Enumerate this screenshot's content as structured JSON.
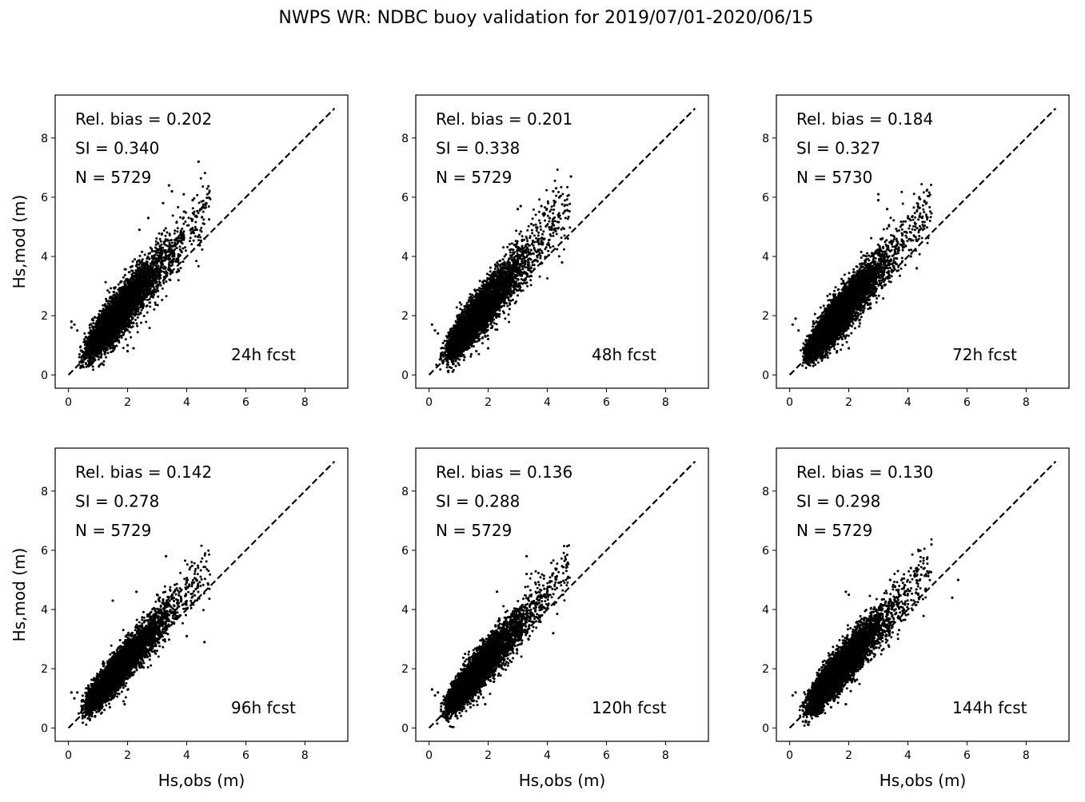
{
  "figure": {
    "title": "NWPS WR: NDBC buoy validation for 2019/07/01-2020/06/15"
  },
  "chart_data": [
    {
      "type": "scatter",
      "forecast": "24h fcst",
      "stats": [
        "Rel. bias =  0.202",
        "SI =  0.340",
        "N = 5729"
      ],
      "xlabel": "",
      "ylabel": "Hs,mod (m)",
      "xlim": [
        -0.45,
        9.45
      ],
      "ylim": [
        -0.45,
        9.45
      ],
      "xticks": [
        0,
        2,
        4,
        6,
        8
      ],
      "yticks": [
        0,
        2,
        4,
        6,
        8
      ],
      "reference_line": {
        "style": "dashed",
        "x": [
          0,
          9
        ],
        "y": [
          0,
          9
        ]
      },
      "marker_color": "#000000",
      "series": [
        {
          "count": 5729,
          "slope": 1.18,
          "intercept": 0.08,
          "spread": 0.34,
          "x": [
            4.4,
            3.4,
            3.5,
            3.2,
            3.9,
            4.7,
            4.2,
            2.7,
            2.4,
            0.1,
            0.1,
            0.2,
            0.3,
            0.9,
            1.1,
            1.5,
            1.5,
            2.0,
            2.0,
            2.2
          ],
          "y": [
            7.2,
            6.4,
            6.2,
            5.8,
            6.1,
            6.1,
            5.9,
            5.3,
            4.9,
            1.6,
            1.8,
            1.7,
            1.5,
            0.5,
            0.6,
            0.9,
            0.8,
            1.0,
            0.8,
            0.9
          ]
        }
      ]
    },
    {
      "type": "scatter",
      "forecast": "48h fcst",
      "stats": [
        "Rel. bias =  0.201",
        "SI =  0.338",
        "N = 5729"
      ],
      "xlabel": "",
      "ylabel": "",
      "xlim": [
        -0.45,
        9.45
      ],
      "ylim": [
        -0.45,
        9.45
      ],
      "xticks": [
        0,
        2,
        4,
        6,
        8
      ],
      "yticks": [
        0,
        2,
        4,
        6,
        8
      ],
      "reference_line": {
        "style": "dashed",
        "x": [
          0,
          9
        ],
        "y": [
          0,
          9
        ]
      },
      "marker_color": "#000000",
      "series": [
        {
          "count": 5729,
          "slope": 1.18,
          "intercept": 0.08,
          "spread": 0.33,
          "x": [
            4.8,
            4.3,
            4.2,
            3.8,
            3.1,
            3.0,
            4.5,
            0.1,
            0.2,
            0.3,
            0.9,
            1.2,
            1.6,
            2.0
          ],
          "y": [
            6.7,
            6.3,
            6.2,
            5.7,
            5.7,
            5.6,
            3.8,
            1.7,
            1.5,
            1.4,
            0.5,
            0.6,
            0.8,
            0.9
          ]
        }
      ]
    },
    {
      "type": "scatter",
      "forecast": "72h fcst",
      "stats": [
        "Rel. bias =  0.184",
        "SI =  0.327",
        "N = 5730"
      ],
      "xlabel": "",
      "ylabel": "",
      "xlim": [
        -0.45,
        9.45
      ],
      "ylim": [
        -0.45,
        9.45
      ],
      "xticks": [
        0,
        2,
        4,
        6,
        8
      ],
      "yticks": [
        0,
        2,
        4,
        6,
        8
      ],
      "reference_line": {
        "style": "dashed",
        "x": [
          0,
          9
        ],
        "y": [
          0,
          9
        ]
      },
      "marker_color": "#000000",
      "series": [
        {
          "count": 5730,
          "slope": 1.16,
          "intercept": 0.08,
          "spread": 0.32,
          "x": [
            3.0,
            3.3,
            3.0,
            4.0,
            4.4,
            4.1,
            4.3,
            0.2,
            0.1,
            0.3,
            0.9,
            1.2,
            1.6,
            2.0
          ],
          "y": [
            6.1,
            5.6,
            5.9,
            5.3,
            4.9,
            4.0,
            3.6,
            1.9,
            1.7,
            1.5,
            0.5,
            0.6,
            0.8,
            0.9
          ]
        }
      ]
    },
    {
      "type": "scatter",
      "forecast": "96h fcst",
      "stats": [
        "Rel. bias =  0.142",
        "SI =  0.278",
        "N = 5729"
      ],
      "xlabel": "Hs,obs (m)",
      "ylabel": "Hs,mod (m)",
      "xlim": [
        -0.45,
        9.45
      ],
      "ylim": [
        -0.45,
        9.45
      ],
      "xticks": [
        0,
        2,
        4,
        6,
        8
      ],
      "yticks": [
        0,
        2,
        4,
        6,
        8
      ],
      "reference_line": {
        "style": "dashed",
        "x": [
          0,
          9
        ],
        "y": [
          0,
          9
        ]
      },
      "marker_color": "#000000",
      "series": [
        {
          "count": 5729,
          "slope": 1.12,
          "intercept": 0.08,
          "spread": 0.26,
          "x": [
            3.3,
            2.3,
            1.5,
            3.0,
            4.6,
            4.0,
            0.1,
            0.2,
            0.3,
            0.9,
            1.4,
            1.9
          ],
          "y": [
            5.8,
            4.6,
            4.3,
            4.5,
            2.9,
            3.1,
            1.2,
            1.0,
            1.2,
            0.4,
            0.7,
            0.8
          ]
        }
      ]
    },
    {
      "type": "scatter",
      "forecast": "120h fcst",
      "stats": [
        "Rel. bias =  0.136",
        "SI =  0.288",
        "N = 5729"
      ],
      "xlabel": "Hs,obs (m)",
      "ylabel": "",
      "xlim": [
        -0.45,
        9.45
      ],
      "ylim": [
        -0.45,
        9.45
      ],
      "xticks": [
        0,
        2,
        4,
        6,
        8
      ],
      "yticks": [
        0,
        2,
        4,
        6,
        8
      ],
      "reference_line": {
        "style": "dashed",
        "x": [
          0,
          9
        ],
        "y": [
          0,
          9
        ]
      },
      "marker_color": "#000000",
      "series": [
        {
          "count": 5729,
          "slope": 1.12,
          "intercept": 0.08,
          "spread": 0.28,
          "x": [
            3.3,
            3.3,
            2.3,
            3.9,
            4.0,
            4.2,
            0.1,
            0.2,
            0.3,
            0.9,
            1.4,
            1.9
          ],
          "y": [
            5.8,
            5.2,
            4.6,
            4.7,
            4.6,
            3.2,
            1.3,
            1.1,
            1.2,
            0.4,
            0.7,
            0.8
          ]
        }
      ]
    },
    {
      "type": "scatter",
      "forecast": "144h fcst",
      "stats": [
        "Rel. bias =  0.130",
        "SI =  0.298",
        "N = 5729"
      ],
      "xlabel": "Hs,obs (m)",
      "ylabel": "",
      "xlim": [
        -0.45,
        9.45
      ],
      "ylim": [
        -0.45,
        9.45
      ],
      "xticks": [
        0,
        2,
        4,
        6,
        8
      ],
      "yticks": [
        0,
        2,
        4,
        6,
        8
      ],
      "reference_line": {
        "style": "dashed",
        "x": [
          0,
          9
        ],
        "y": [
          0,
          9
        ]
      },
      "marker_color": "#000000",
      "series": [
        {
          "count": 5729,
          "slope": 1.12,
          "intercept": 0.08,
          "spread": 0.3,
          "x": [
            4.1,
            4.3,
            5.7,
            5.5,
            4.6,
            3.4,
            1.9,
            2.0,
            0.1,
            0.2,
            0.9,
            1.4,
            1.9
          ],
          "y": [
            5.4,
            5.4,
            5.0,
            4.4,
            4.7,
            5.0,
            4.6,
            4.5,
            1.1,
            1.2,
            0.4,
            0.7,
            0.8
          ]
        }
      ]
    }
  ]
}
